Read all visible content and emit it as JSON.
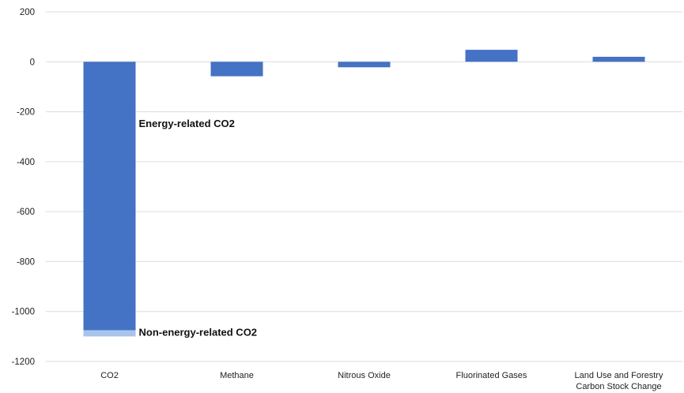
{
  "chart_data": {
    "type": "bar",
    "stacked": true,
    "categories": [
      "CO2",
      "Methane",
      "Nitrous Oxide",
      "Fluorinated Gases",
      "Land Use and Forestry Carbon Stock Change"
    ],
    "category_lines": [
      [
        "CO2"
      ],
      [
        "Methane"
      ],
      [
        "Nitrous Oxide"
      ],
      [
        "Fluorinated Gases"
      ],
      [
        "Land Use and Forestry",
        "Carbon Stock Change"
      ]
    ],
    "series": [
      {
        "values": [
          -1075,
          -58,
          -22,
          48,
          20
        ],
        "color": "#4472c4"
      },
      {
        "values": [
          -25,
          0,
          0,
          0,
          0
        ],
        "color": "#a9c4ea"
      }
    ],
    "ylim": [
      -1200,
      200
    ],
    "yticks": [
      200,
      0,
      -200,
      -400,
      -600,
      -800,
      -1000,
      -1200
    ],
    "grid": true,
    "annotations": [
      {
        "text": "Energy-related CO2",
        "category": "CO2",
        "y": -248
      },
      {
        "text": "Non-energy-related CO2",
        "category": "CO2",
        "y": -1085
      }
    ],
    "title": "",
    "xlabel": "",
    "ylabel": ""
  }
}
